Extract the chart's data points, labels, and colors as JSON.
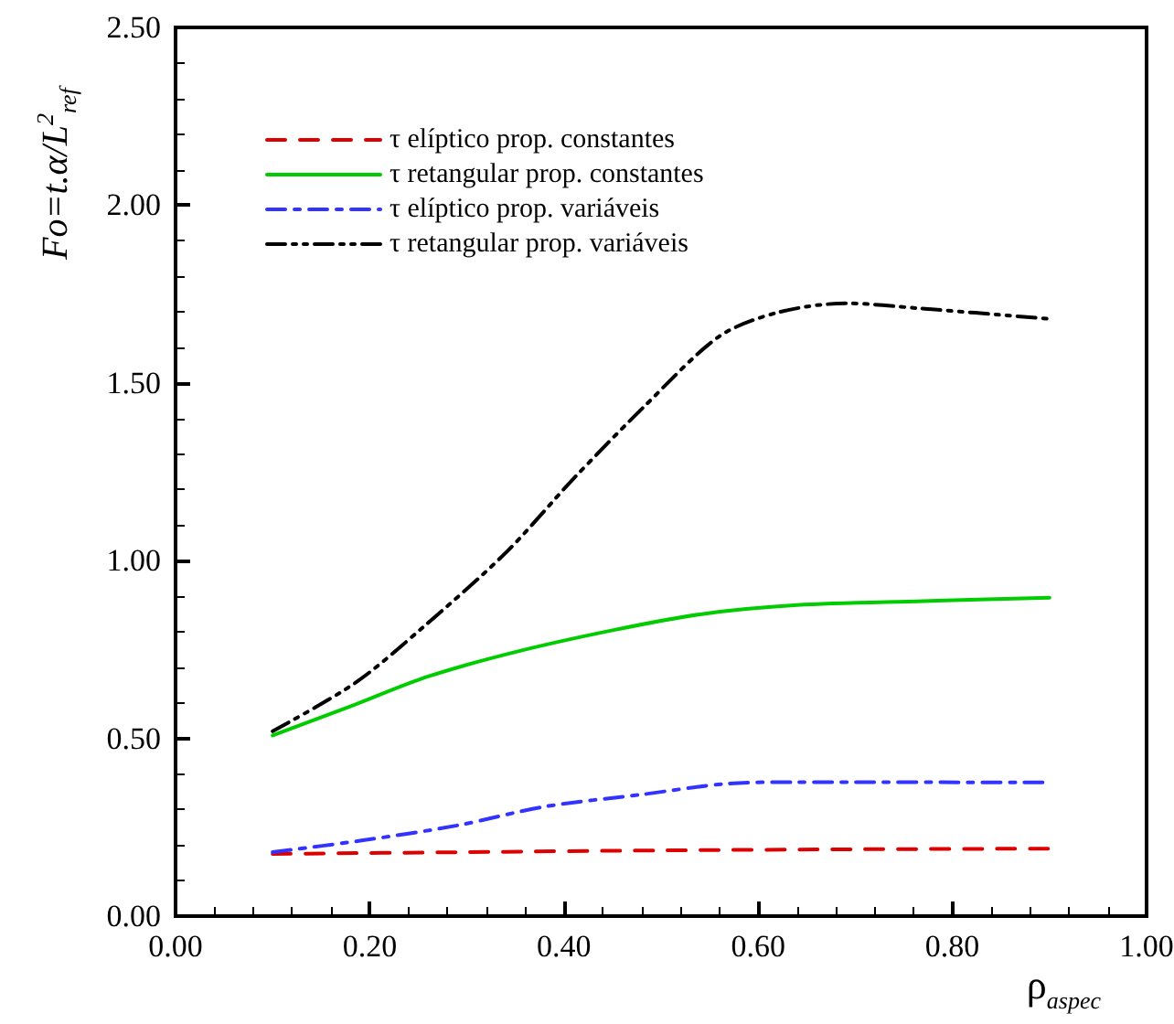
{
  "chart_data": {
    "type": "line",
    "xlabel": "ρ$_{aspec}$",
    "ylabel": "Fo=t.α/L$^{2}$$_{ref}$",
    "xlim": [
      0,
      1
    ],
    "xticks": [
      {
        "value": 0,
        "label": "0.00"
      },
      {
        "value": 0.2,
        "label": "0.20"
      },
      {
        "value": 0.4,
        "label": "0.40"
      },
      {
        "value": 0.6,
        "label": "0.60"
      },
      {
        "value": 0.8,
        "label": "0.80"
      },
      {
        "value": 1,
        "label": "1.00"
      }
    ],
    "ylim": [
      0,
      2.5
    ],
    "yticks": [
      {
        "value": 0,
        "label": "0.00"
      },
      {
        "value": 0.5,
        "label": "0.50"
      },
      {
        "value": 1,
        "label": "1.00"
      },
      {
        "value": 1.5,
        "label": "1.50"
      },
      {
        "value": 2,
        "label": "2.00"
      },
      {
        "value": 2.5,
        "label": "2.50"
      }
    ],
    "grid": false,
    "legend": "top left",
    "marker": "none",
    "series": [
      {
        "name": "τ elíptico prop. constantes",
        "color": "#dd0000",
        "line_style": "dashed",
        "x": [
          0.1,
          0.3,
          0.5,
          0.7,
          0.9
        ],
        "values": [
          0.175,
          0.18,
          0.185,
          0.188,
          0.19
        ]
      },
      {
        "name": "τ retangular prop. constantes",
        "color": "#00cc00",
        "line_style": "solid",
        "x": [
          0.1,
          0.18,
          0.26,
          0.35,
          0.45,
          0.54,
          0.64,
          0.77,
          0.9
        ],
        "values": [
          0.508,
          0.59,
          0.674,
          0.743,
          0.804,
          0.849,
          0.875,
          0.886,
          0.896
        ]
      },
      {
        "name": "τ elíptico prop. variáveis",
        "color": "#3333ff",
        "line_style": "dashdot",
        "x": [
          0.1,
          0.19,
          0.29,
          0.38,
          0.48,
          0.57,
          0.64,
          0.9
        ],
        "values": [
          0.18,
          0.212,
          0.255,
          0.308,
          0.342,
          0.373,
          0.377,
          0.376
        ]
      },
      {
        "name": "τ retangular prop. variáveis",
        "color": "#000000",
        "line_style": "dashdotdot",
        "x": [
          0.1,
          0.185,
          0.255,
          0.34,
          0.41,
          0.485,
          0.56,
          0.62,
          0.69,
          0.765,
          0.9
        ],
        "values": [
          0.52,
          0.656,
          0.813,
          1.022,
          1.231,
          1.44,
          1.631,
          1.698,
          1.724,
          1.71,
          1.68
        ]
      }
    ]
  }
}
